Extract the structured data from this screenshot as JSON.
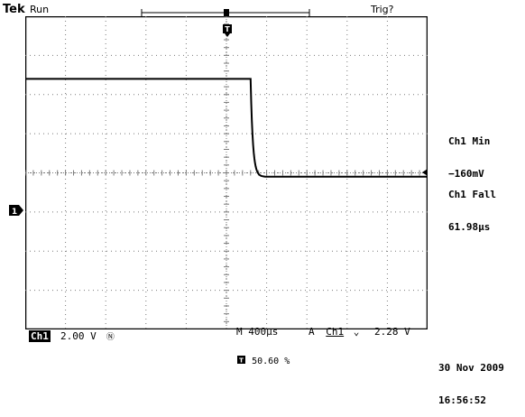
{
  "header": {
    "brand": "Tek",
    "run_status": "Run",
    "trig_status": "Trig?"
  },
  "markers": {
    "trigger_pos": "T",
    "ch1_ground": "1"
  },
  "measurements": [
    {
      "label": "Ch1 Min",
      "value": "−160mV"
    },
    {
      "label": "Ch1 Fall",
      "value": "61.98µs"
    }
  ],
  "status_bar": {
    "channel": "Ch1",
    "volts_div": "2.00 V",
    "bw_symbol": "Ⓝ",
    "timebase": "M 400µs",
    "trigger_mode": "A",
    "trigger_source": "Ch1",
    "trigger_slope": "⌄",
    "trigger_level": "2.28 V",
    "trigger_position": "50.60 %",
    "date": "30 Nov 2009",
    "time": "16:56:52"
  },
  "waveform": {
    "high_level_div": 2.4,
    "low_level_div": -0.1,
    "edge_time_div": 5.6
  },
  "colors": {
    "background": "#ffffff",
    "trace": "#000000",
    "graticule": "#7a7a7a"
  }
}
